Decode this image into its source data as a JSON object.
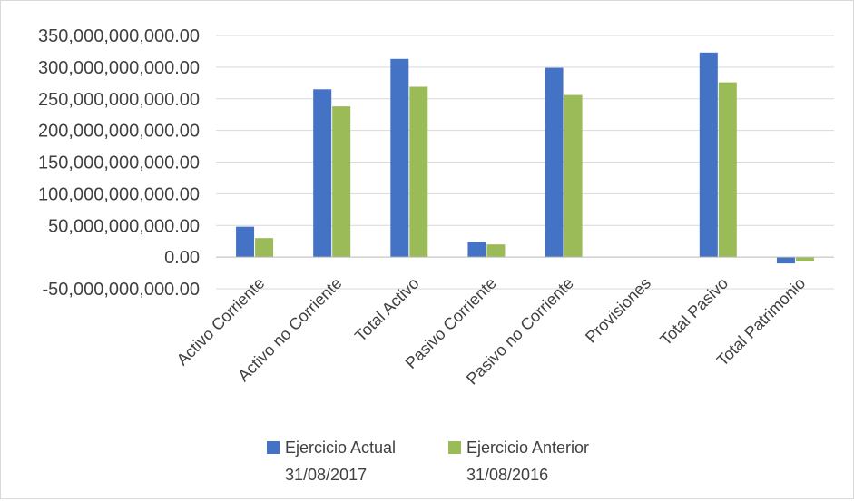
{
  "chart_data": {
    "type": "bar",
    "title": "",
    "xlabel": "",
    "ylabel": "",
    "ylim": [
      -50000000000,
      350000000000
    ],
    "ytick_step": 50000000000,
    "y_tick_labels": [
      "350,000,000,000.00",
      "300,000,000,000.00",
      "250,000,000,000.00",
      "200,000,000,000.00",
      "150,000,000,000.00",
      "100,000,000,000.00",
      "50,000,000,000.00",
      "0.00",
      "-50,000,000,000.00"
    ],
    "grid": "horizontal",
    "legend_position": "bottom",
    "categories": [
      "Activo Corriente",
      "Activo no Corriente",
      "Total Activo",
      "Pasivo Corriente",
      "Pasivo no Corriente",
      "Provisiones",
      "Total Pasivo",
      "Total Patrimonio"
    ],
    "series": [
      {
        "name": "Ejercicio Actual",
        "name_line2": "31/08/2017",
        "color": "#4472C4",
        "values": [
          48000000000,
          265000000000,
          313000000000,
          24000000000,
          299000000000,
          0,
          323000000000,
          -10000000000
        ]
      },
      {
        "name": "Ejercicio Anterior",
        "name_line2": "31/08/2016",
        "color": "#9BBB59",
        "values": [
          30000000000,
          238000000000,
          269000000000,
          20000000000,
          256000000000,
          0,
          276000000000,
          -7000000000
        ]
      }
    ]
  }
}
